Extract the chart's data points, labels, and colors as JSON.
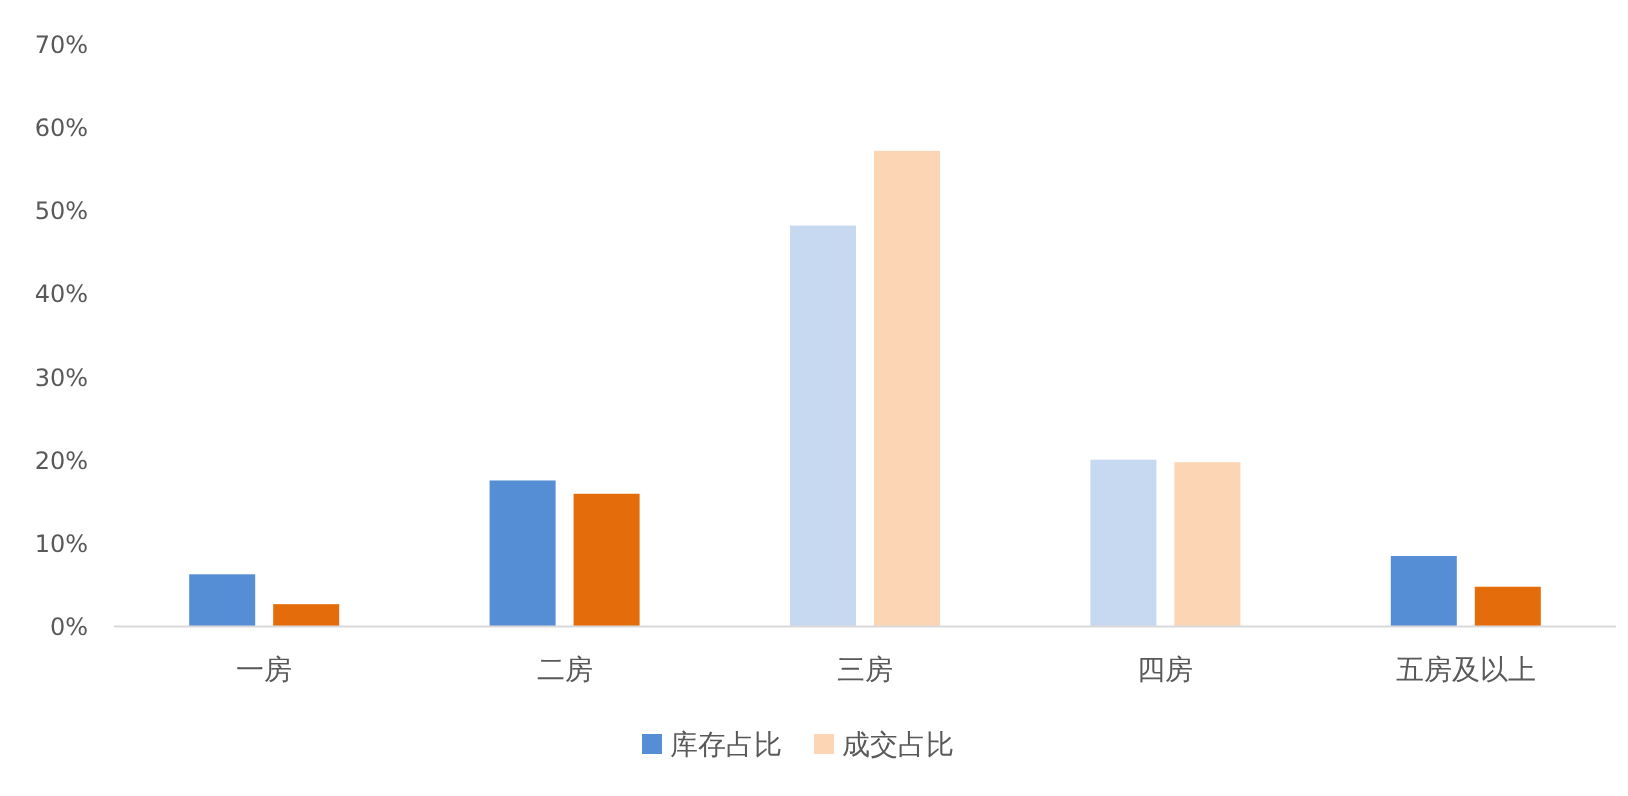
{
  "chart_data": {
    "type": "bar",
    "categories": [
      "一房",
      "二房",
      "三房",
      "四房",
      "五房及以上"
    ],
    "series": [
      {
        "name": "库存占比",
        "color": "#558ed5",
        "values": [
          6.3,
          17.6,
          48.3,
          20.1,
          8.5
        ],
        "colors": [
          "#558ed5",
          "#558ed5",
          "#c6d9f1",
          "#c6d9f1",
          "#558ed5"
        ]
      },
      {
        "name": "成交占比",
        "color": "#fcd5b5",
        "values": [
          2.7,
          16.0,
          57.3,
          19.8,
          4.8
        ],
        "colors": [
          "#e46c0a",
          "#e46c0a",
          "#fcd5b5",
          "#fcd5b5",
          "#e46c0a"
        ]
      }
    ],
    "ylim": [
      0,
      70
    ],
    "yticks": [
      {
        "value": 0,
        "label": "0%"
      },
      {
        "value": 10,
        "label": "10%"
      },
      {
        "value": 20,
        "label": "20%"
      },
      {
        "value": 30,
        "label": "30%"
      },
      {
        "value": 40,
        "label": "40%"
      },
      {
        "value": 50,
        "label": "50%"
      },
      {
        "value": 60,
        "label": "60%"
      },
      {
        "value": 70,
        "label": "70%"
      }
    ],
    "grid": false,
    "legend": "bottom"
  }
}
